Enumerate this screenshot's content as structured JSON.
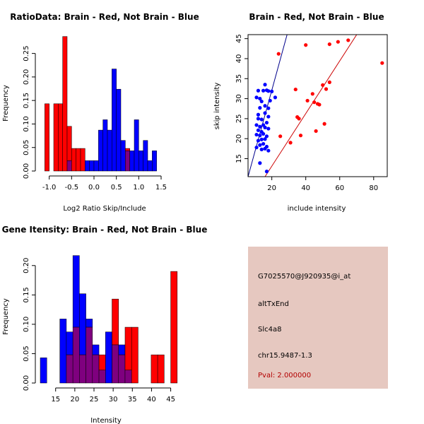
{
  "colors": {
    "red": "#ff0000",
    "blue": "#0000ff",
    "overlap": "#7f007f",
    "dark_red": "#cc0000",
    "dark_blue": "#00008b",
    "info_bg": "#e6c8c0",
    "pval": "#b30000"
  },
  "chart_data": [
    {
      "type": "bar",
      "title": "RatioData: Brain - Red, Not Brain - Blue",
      "xlabel": "Log2 Ratio Skip/Include",
      "ylabel": "Frequency",
      "xlim": [
        -1.2,
        1.8
      ],
      "ylim": [
        0,
        0.29
      ],
      "xticks": [
        -1.0,
        -0.5,
        0.0,
        0.5,
        1.0,
        1.5
      ],
      "xtick_labels": [
        "-1.0",
        "-0.5",
        "0.0",
        "0.5",
        "1.0",
        "1.5"
      ],
      "yticks": [
        0,
        0.05,
        0.1,
        0.15,
        0.2,
        0.25
      ],
      "ytick_labels": [
        "0.00",
        "0.05",
        "0.10",
        "0.15",
        "0.20",
        "0.25"
      ],
      "bin_start": -1.1,
      "bin_width": 0.1,
      "series": [
        {
          "name": "Brain",
          "color": "red",
          "values": [
            0.143,
            0,
            0.143,
            0.143,
            0.286,
            0.095,
            0.048,
            0.048,
            0.048,
            0,
            0,
            0,
            0,
            0,
            0,
            0,
            0,
            0,
            0.048,
            0,
            0,
            0,
            0,
            0,
            0,
            0,
            0,
            0
          ]
        },
        {
          "name": "Not Brain",
          "color": "blue",
          "values": [
            0,
            0,
            0,
            0,
            0,
            0.022,
            0,
            0,
            0,
            0.022,
            0.022,
            0.022,
            0.087,
            0.109,
            0.087,
            0.217,
            0.174,
            0.065,
            0.043,
            0.043,
            0.109,
            0.043,
            0.065,
            0.022,
            0.043,
            0,
            0,
            0
          ]
        }
      ]
    },
    {
      "type": "scatter",
      "title": "Brain - Red, Not Brain - Blue",
      "xlabel": "include intensity",
      "ylabel": "skip intensity",
      "xlim": [
        6,
        88
      ],
      "ylim": [
        10.5,
        46
      ],
      "xticks": [
        20,
        40,
        60,
        80
      ],
      "xtick_labels": [
        "20",
        "40",
        "60",
        "80"
      ],
      "yticks": [
        15,
        20,
        25,
        30,
        35,
        40,
        45
      ],
      "ytick_labels": [
        "15",
        "20",
        "25",
        "30",
        "35",
        "40",
        "45"
      ],
      "series": [
        {
          "name": "Brain",
          "color": "red",
          "points": [
            [
              24,
              41.2
            ],
            [
              40,
              43.4
            ],
            [
              54,
              43.6
            ],
            [
              59,
              44.2
            ],
            [
              65,
              44.6
            ],
            [
              85,
              38.9
            ],
            [
              34,
              32.3
            ],
            [
              44,
              31.2
            ],
            [
              50,
              33.4
            ],
            [
              52,
              32.4
            ],
            [
              54,
              34.1
            ],
            [
              41,
              29.5
            ],
            [
              45,
              29.1
            ],
            [
              47,
              28.7
            ],
            [
              48,
              28.5
            ],
            [
              35,
              25.4
            ],
            [
              36,
              25
            ],
            [
              51,
              23.7
            ],
            [
              46,
              21.9
            ],
            [
              25,
              20.6
            ],
            [
              37,
              20.8
            ],
            [
              31,
              19
            ]
          ]
        },
        {
          "name": "Not Brain",
          "color": "blue",
          "points": [
            [
              11,
              30.3
            ],
            [
              12,
              32
            ],
            [
              13,
              30
            ],
            [
              15,
              32
            ],
            [
              16,
              33.5
            ],
            [
              17,
              32.1
            ],
            [
              18,
              31.9
            ],
            [
              20,
              31.8
            ],
            [
              14,
              29.3
            ],
            [
              19,
              29.5
            ],
            [
              22,
              30.3
            ],
            [
              12,
              26
            ],
            [
              13,
              27.7
            ],
            [
              16,
              28.2
            ],
            [
              18,
              27.6
            ],
            [
              12,
              25
            ],
            [
              14,
              24.8
            ],
            [
              16,
              26.4
            ],
            [
              18,
              25.5
            ],
            [
              11,
              23.4
            ],
            [
              13,
              23
            ],
            [
              15,
              23.4
            ],
            [
              17,
              24
            ],
            [
              12,
              22.1
            ],
            [
              14,
              21.7
            ],
            [
              16,
              22.8
            ],
            [
              18,
              22.5
            ],
            [
              11,
              21
            ],
            [
              13,
              20.8
            ],
            [
              15,
              21.2
            ],
            [
              17,
              20.6
            ],
            [
              12,
              19.5
            ],
            [
              14,
              19.8
            ],
            [
              16,
              19.9
            ],
            [
              13,
              18.4
            ],
            [
              15,
              18.7
            ],
            [
              17,
              18
            ],
            [
              11,
              17.8
            ],
            [
              14,
              17.3
            ],
            [
              16,
              17.5
            ],
            [
              18,
              17
            ],
            [
              13,
              13.9
            ],
            [
              17,
              11.8
            ]
          ]
        }
      ],
      "lines": [
        {
          "name": "Not Brain fit",
          "color": "dark_blue",
          "from": [
            6,
            10.5
          ],
          "to": [
            29,
            46
          ]
        },
        {
          "name": "Brain fit",
          "color": "dark_red",
          "from": [
            16,
            10.5
          ],
          "to": [
            70,
            46
          ]
        }
      ]
    },
    {
      "type": "bar",
      "title": "Gene Itensity: Brain - Red, Not Brain - Blue",
      "xlabel": "Intensity",
      "ylabel": "Frequency",
      "xlim": [
        11,
        46
      ],
      "ylim": [
        0,
        0.225
      ],
      "xticks": [
        15,
        20,
        25,
        30,
        35,
        40,
        45
      ],
      "xtick_labels": [
        "15",
        "20",
        "25",
        "30",
        "35",
        "40",
        "45"
      ],
      "yticks": [
        0,
        0.05,
        0.1,
        0.15,
        0.2
      ],
      "ytick_labels": [
        "0.00",
        "0.05",
        "0.10",
        "0.15",
        "0.20"
      ],
      "bin_start": 11,
      "bin_width": 1.7,
      "series": [
        {
          "name": "Brain",
          "color": "red",
          "values": [
            0,
            0,
            0,
            0,
            0.048,
            0.095,
            0.048,
            0.095,
            0.048,
            0.048,
            0,
            0.143,
            0.048,
            0.095,
            0.095,
            0,
            0,
            0.048,
            0.048,
            0,
            0.19
          ]
        },
        {
          "name": "Not Brain",
          "color": "blue",
          "values": [
            0.043,
            0,
            0,
            0.109,
            0.087,
            0.217,
            0.152,
            0.109,
            0.065,
            0.022,
            0.087,
            0.065,
            0.065,
            0.022,
            0,
            0,
            0,
            0,
            0,
            0,
            0
          ]
        }
      ]
    }
  ],
  "info": {
    "probe_id": "G7025570@J920935@i_at",
    "event_type": "altTxEnd",
    "gene": "Slc4a8",
    "location": "chr15.9487-1.3",
    "pval": "Pval: 2.000000"
  }
}
